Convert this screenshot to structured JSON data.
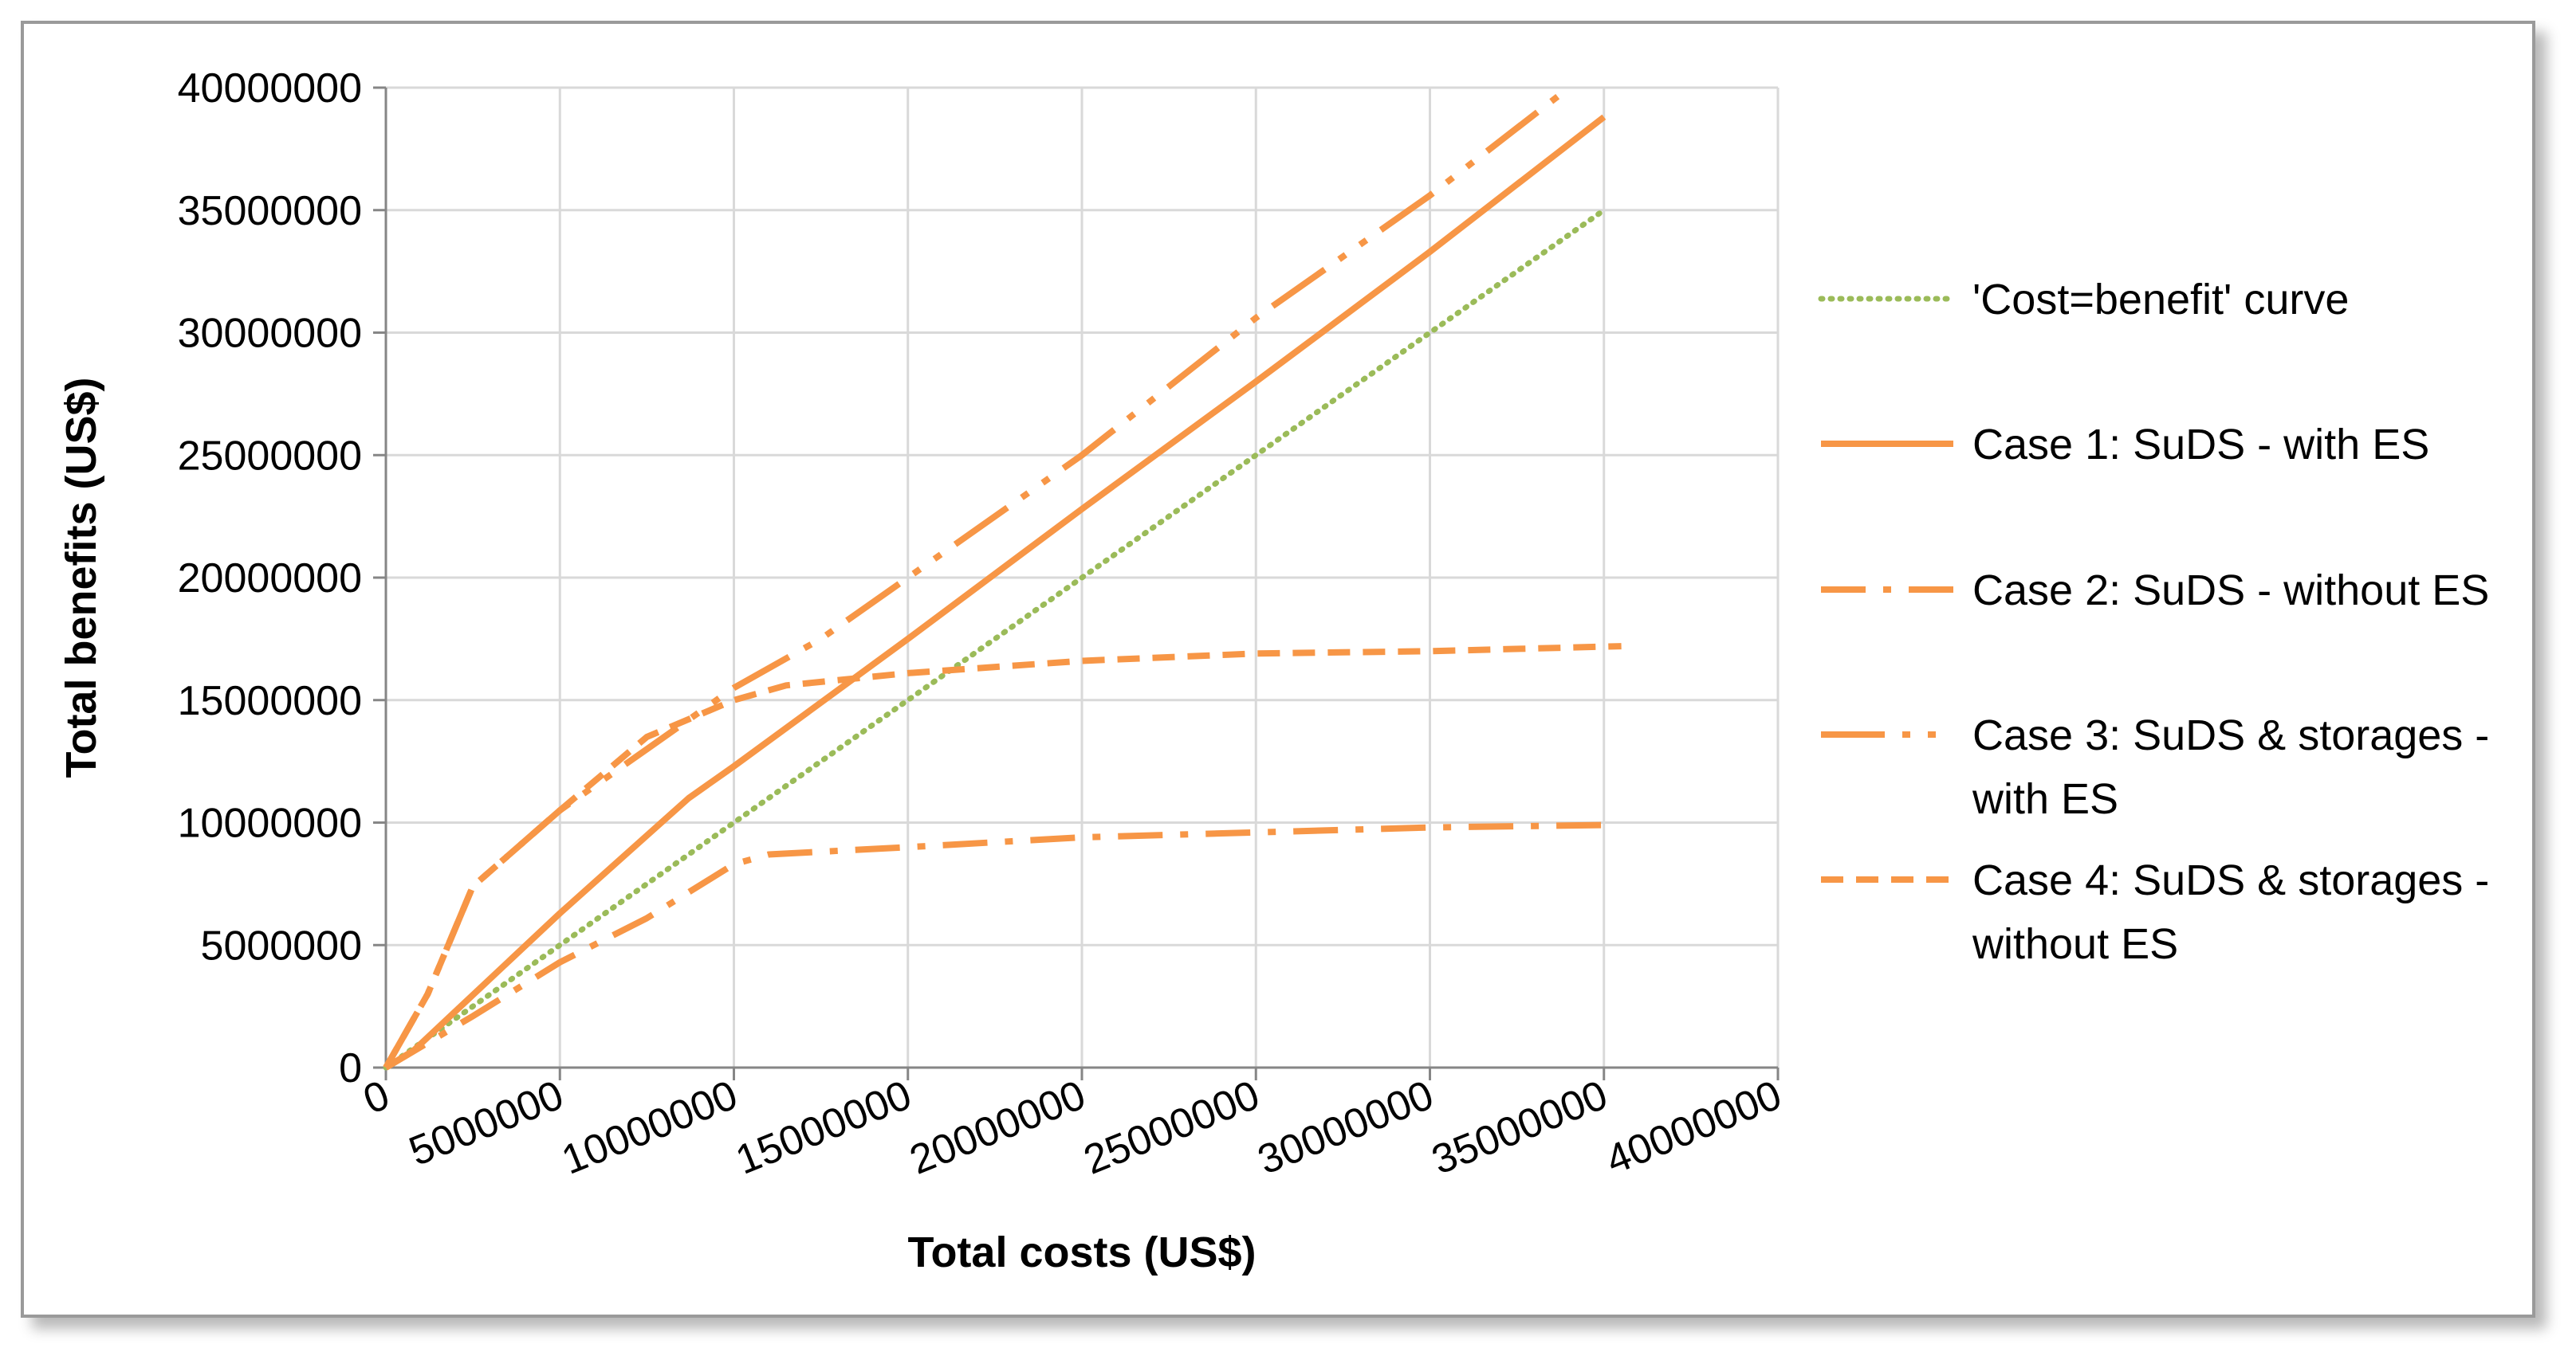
{
  "chart_data": {
    "type": "line",
    "xlabel": "Total costs (US$)",
    "ylabel": "Total benefits (US$)",
    "xlim": [
      0,
      40000000
    ],
    "ylim": [
      0,
      40000000
    ],
    "x_ticks": [
      "0",
      "5000000",
      "10000000",
      "15000000",
      "20000000",
      "25000000",
      "30000000",
      "35000000",
      "40000000"
    ],
    "y_ticks": [
      "0",
      "5000000",
      "10000000",
      "15000000",
      "20000000",
      "25000000",
      "30000000",
      "35000000",
      "40000000"
    ],
    "grid": true,
    "legend_position": "right",
    "series": [
      {
        "name": "'Cost=benefit' curve",
        "legend_lines": [
          "'Cost=benefit' curve"
        ],
        "color": "#9bbb59",
        "style": "dotted",
        "points": [
          [
            0,
            0
          ],
          [
            35000000,
            35000000
          ]
        ]
      },
      {
        "name": "Case 1: SuDS - with ES",
        "legend_lines": [
          "Case 1: SuDS - with ES"
        ],
        "color": "#f79646",
        "style": "solid",
        "points": [
          [
            0,
            0
          ],
          [
            800000,
            700000
          ],
          [
            5000000,
            6300000
          ],
          [
            8700000,
            11000000
          ],
          [
            10000000,
            12300000
          ],
          [
            15000000,
            17500000
          ],
          [
            20000000,
            22800000
          ],
          [
            25000000,
            28000000
          ],
          [
            30000000,
            33300000
          ],
          [
            35000000,
            38800000
          ]
        ]
      },
      {
        "name": "Case 2: SuDS - without ES",
        "legend_lines": [
          "Case 2: SuDS - without ES"
        ],
        "color": "#f79646",
        "style": "dashdot",
        "points": [
          [
            0,
            0
          ],
          [
            2500000,
            2100000
          ],
          [
            5000000,
            4300000
          ],
          [
            7500000,
            6100000
          ],
          [
            10000000,
            8300000
          ],
          [
            11000000,
            8700000
          ],
          [
            15000000,
            9000000
          ],
          [
            20000000,
            9400000
          ],
          [
            25000000,
            9600000
          ],
          [
            30000000,
            9800000
          ],
          [
            35000000,
            9900000
          ]
        ]
      },
      {
        "name": "Case 3: SuDS & storages - with ES",
        "legend_lines": [
          "Case 3: SuDS & storages -",
          "with ES"
        ],
        "color": "#f79646",
        "style": "longdashdotdot",
        "points": [
          [
            0,
            0
          ],
          [
            600000,
            1500000
          ],
          [
            1200000,
            3000000
          ],
          [
            2500000,
            7400000
          ],
          [
            5000000,
            10500000
          ],
          [
            7500000,
            13000000
          ],
          [
            10000000,
            15500000
          ],
          [
            12500000,
            17500000
          ],
          [
            15000000,
            20000000
          ],
          [
            20000000,
            25000000
          ],
          [
            25000000,
            30600000
          ],
          [
            30000000,
            35600000
          ],
          [
            34000000,
            40000000
          ]
        ]
      },
      {
        "name": "Case 4: SuDS & storages - without ES",
        "legend_lines": [
          "Case 4: SuDS & storages -",
          "without ES"
        ],
        "color": "#f79646",
        "style": "dashed",
        "points": [
          [
            0,
            0
          ],
          [
            600000,
            1500000
          ],
          [
            1200000,
            3000000
          ],
          [
            2500000,
            7400000
          ],
          [
            5000000,
            10500000
          ],
          [
            7500000,
            13500000
          ],
          [
            10000000,
            15000000
          ],
          [
            11500000,
            15600000
          ],
          [
            15000000,
            16100000
          ],
          [
            20000000,
            16600000
          ],
          [
            25000000,
            16900000
          ],
          [
            30000000,
            17000000
          ],
          [
            35500000,
            17200000
          ]
        ]
      }
    ]
  }
}
